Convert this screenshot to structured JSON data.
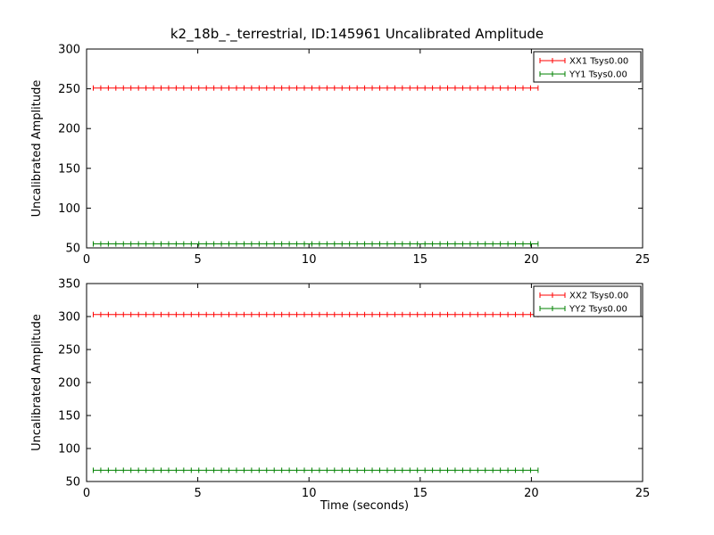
{
  "title": "k2_18b_-_terrestrial, ID:145961 Uncalibrated Amplitude",
  "chart_data": [
    {
      "type": "line",
      "subplot": "top",
      "ylabel": "Uncalibrated Amplitude",
      "xlabel": "",
      "xlim": [
        0,
        25
      ],
      "ylim": [
        50,
        300
      ],
      "xticks": [
        0,
        5,
        10,
        15,
        20,
        25
      ],
      "yticks": [
        50,
        100,
        150,
        200,
        250,
        300
      ],
      "grid": false,
      "legend_position": "upper right",
      "series": [
        {
          "name": "XX1 Tsys0.00",
          "color": "#ff0000",
          "marker": "tick",
          "y_value": 251,
          "x_start": 0.3,
          "x_end": 20.3,
          "n_points": 60
        },
        {
          "name": "YY1 Tsys0.00",
          "color": "#008000",
          "marker": "tick",
          "y_value": 55,
          "x_start": 0.3,
          "x_end": 20.3,
          "n_points": 60
        }
      ]
    },
    {
      "type": "line",
      "subplot": "bottom",
      "ylabel": "Uncalibrated Amplitude",
      "xlabel": "Time (seconds)",
      "xlim": [
        0,
        25
      ],
      "ylim": [
        50,
        350
      ],
      "xticks": [
        0,
        5,
        10,
        15,
        20,
        25
      ],
      "yticks": [
        50,
        100,
        150,
        200,
        250,
        300,
        350
      ],
      "grid": false,
      "legend_position": "upper right",
      "series": [
        {
          "name": "XX2 Tsys0.00",
          "color": "#ff0000",
          "marker": "tick",
          "y_value": 303,
          "x_start": 0.3,
          "x_end": 20.3,
          "n_points": 60
        },
        {
          "name": "YY2 Tsys0.00",
          "color": "#008000",
          "marker": "tick",
          "y_value": 67,
          "x_start": 0.3,
          "x_end": 20.3,
          "n_points": 60
        }
      ]
    }
  ]
}
